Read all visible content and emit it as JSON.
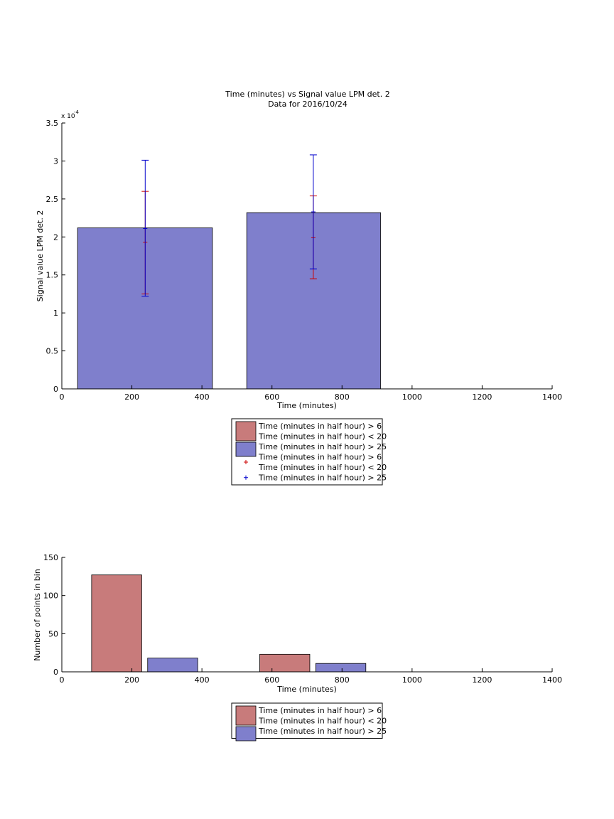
{
  "chart_data": [
    {
      "type": "bar",
      "title": "Time (minutes) vs Signal value LPM det. 2",
      "subtitle": "Data for 2016/10/24",
      "xlabel": "Time (minutes)",
      "ylabel": "Signal value LPM det. 2",
      "y_exponent_label": "x 10",
      "y_exponent_power": "-4",
      "xlim": [
        0,
        1400
      ],
      "ylim": [
        0,
        3.5
      ],
      "x_ticks": [
        "0",
        "200",
        "400",
        "600",
        "800",
        "1000",
        "1200",
        "1400"
      ],
      "y_ticks": [
        "0",
        "0.5",
        "1",
        "1.5",
        "2",
        "2.5",
        "3",
        "3.5"
      ],
      "grid": false,
      "legend_position": "below-center",
      "series": [
        {
          "name": "Time (minutes in half hour) > 6\nTime (minutes in half hour) < 20",
          "kind": "bar",
          "color": "#c87b7b",
          "bars": []
        },
        {
          "name": "Time (minutes in half hour) > 25",
          "kind": "bar",
          "color": "#7f7fcc",
          "bars": [
            {
              "x_start": 45,
              "x_end": 430,
              "value": 2.12
            },
            {
              "x_start": 528,
              "x_end": 910,
              "value": 2.32
            }
          ]
        },
        {
          "name": "Time (minutes in half hour) > 6\nTime (minutes in half hour) < 20",
          "kind": "errorbar",
          "color": "#cc0000",
          "points": [
            {
              "x": 238,
              "y": 1.93,
              "low": 1.25,
              "high": 2.6
            },
            {
              "x": 718,
              "y": 1.99,
              "low": 1.45,
              "high": 2.54
            }
          ]
        },
        {
          "name": "Time (minutes in half hour) > 25",
          "kind": "errorbar",
          "color": "#0000cc",
          "points": [
            {
              "x": 238,
              "y": 2.11,
              "low": 1.22,
              "high": 3.01
            },
            {
              "x": 718,
              "y": 2.33,
              "low": 1.58,
              "high": 3.08
            },
            {
              "x": 1200,
              "y": 0.0,
              "low": 0.0,
              "high": 0.0
            }
          ]
        }
      ]
    },
    {
      "type": "bar",
      "xlabel": "Time (minutes)",
      "ylabel": "Number of points in bin",
      "xlim": [
        0,
        1400
      ],
      "ylim": [
        0,
        150
      ],
      "x_ticks": [
        "0",
        "200",
        "400",
        "600",
        "800",
        "1000",
        "1200",
        "1400"
      ],
      "y_ticks": [
        "0",
        "50",
        "100",
        "150"
      ],
      "grid": false,
      "legend_position": "below-center",
      "series": [
        {
          "name": "Time (minutes in half hour) > 6\nTime (minutes in half hour) < 20",
          "color": "#c87b7b",
          "bars": [
            {
              "x_start": 85,
              "x_end": 228,
              "value": 127
            },
            {
              "x_start": 565,
              "x_end": 708,
              "value": 23
            }
          ]
        },
        {
          "name": "Time (minutes in half hour) > 25",
          "color": "#7f7fcc",
          "bars": [
            {
              "x_start": 245,
              "x_end": 388,
              "value": 18
            },
            {
              "x_start": 725,
              "x_end": 868,
              "value": 11
            }
          ]
        }
      ]
    }
  ]
}
